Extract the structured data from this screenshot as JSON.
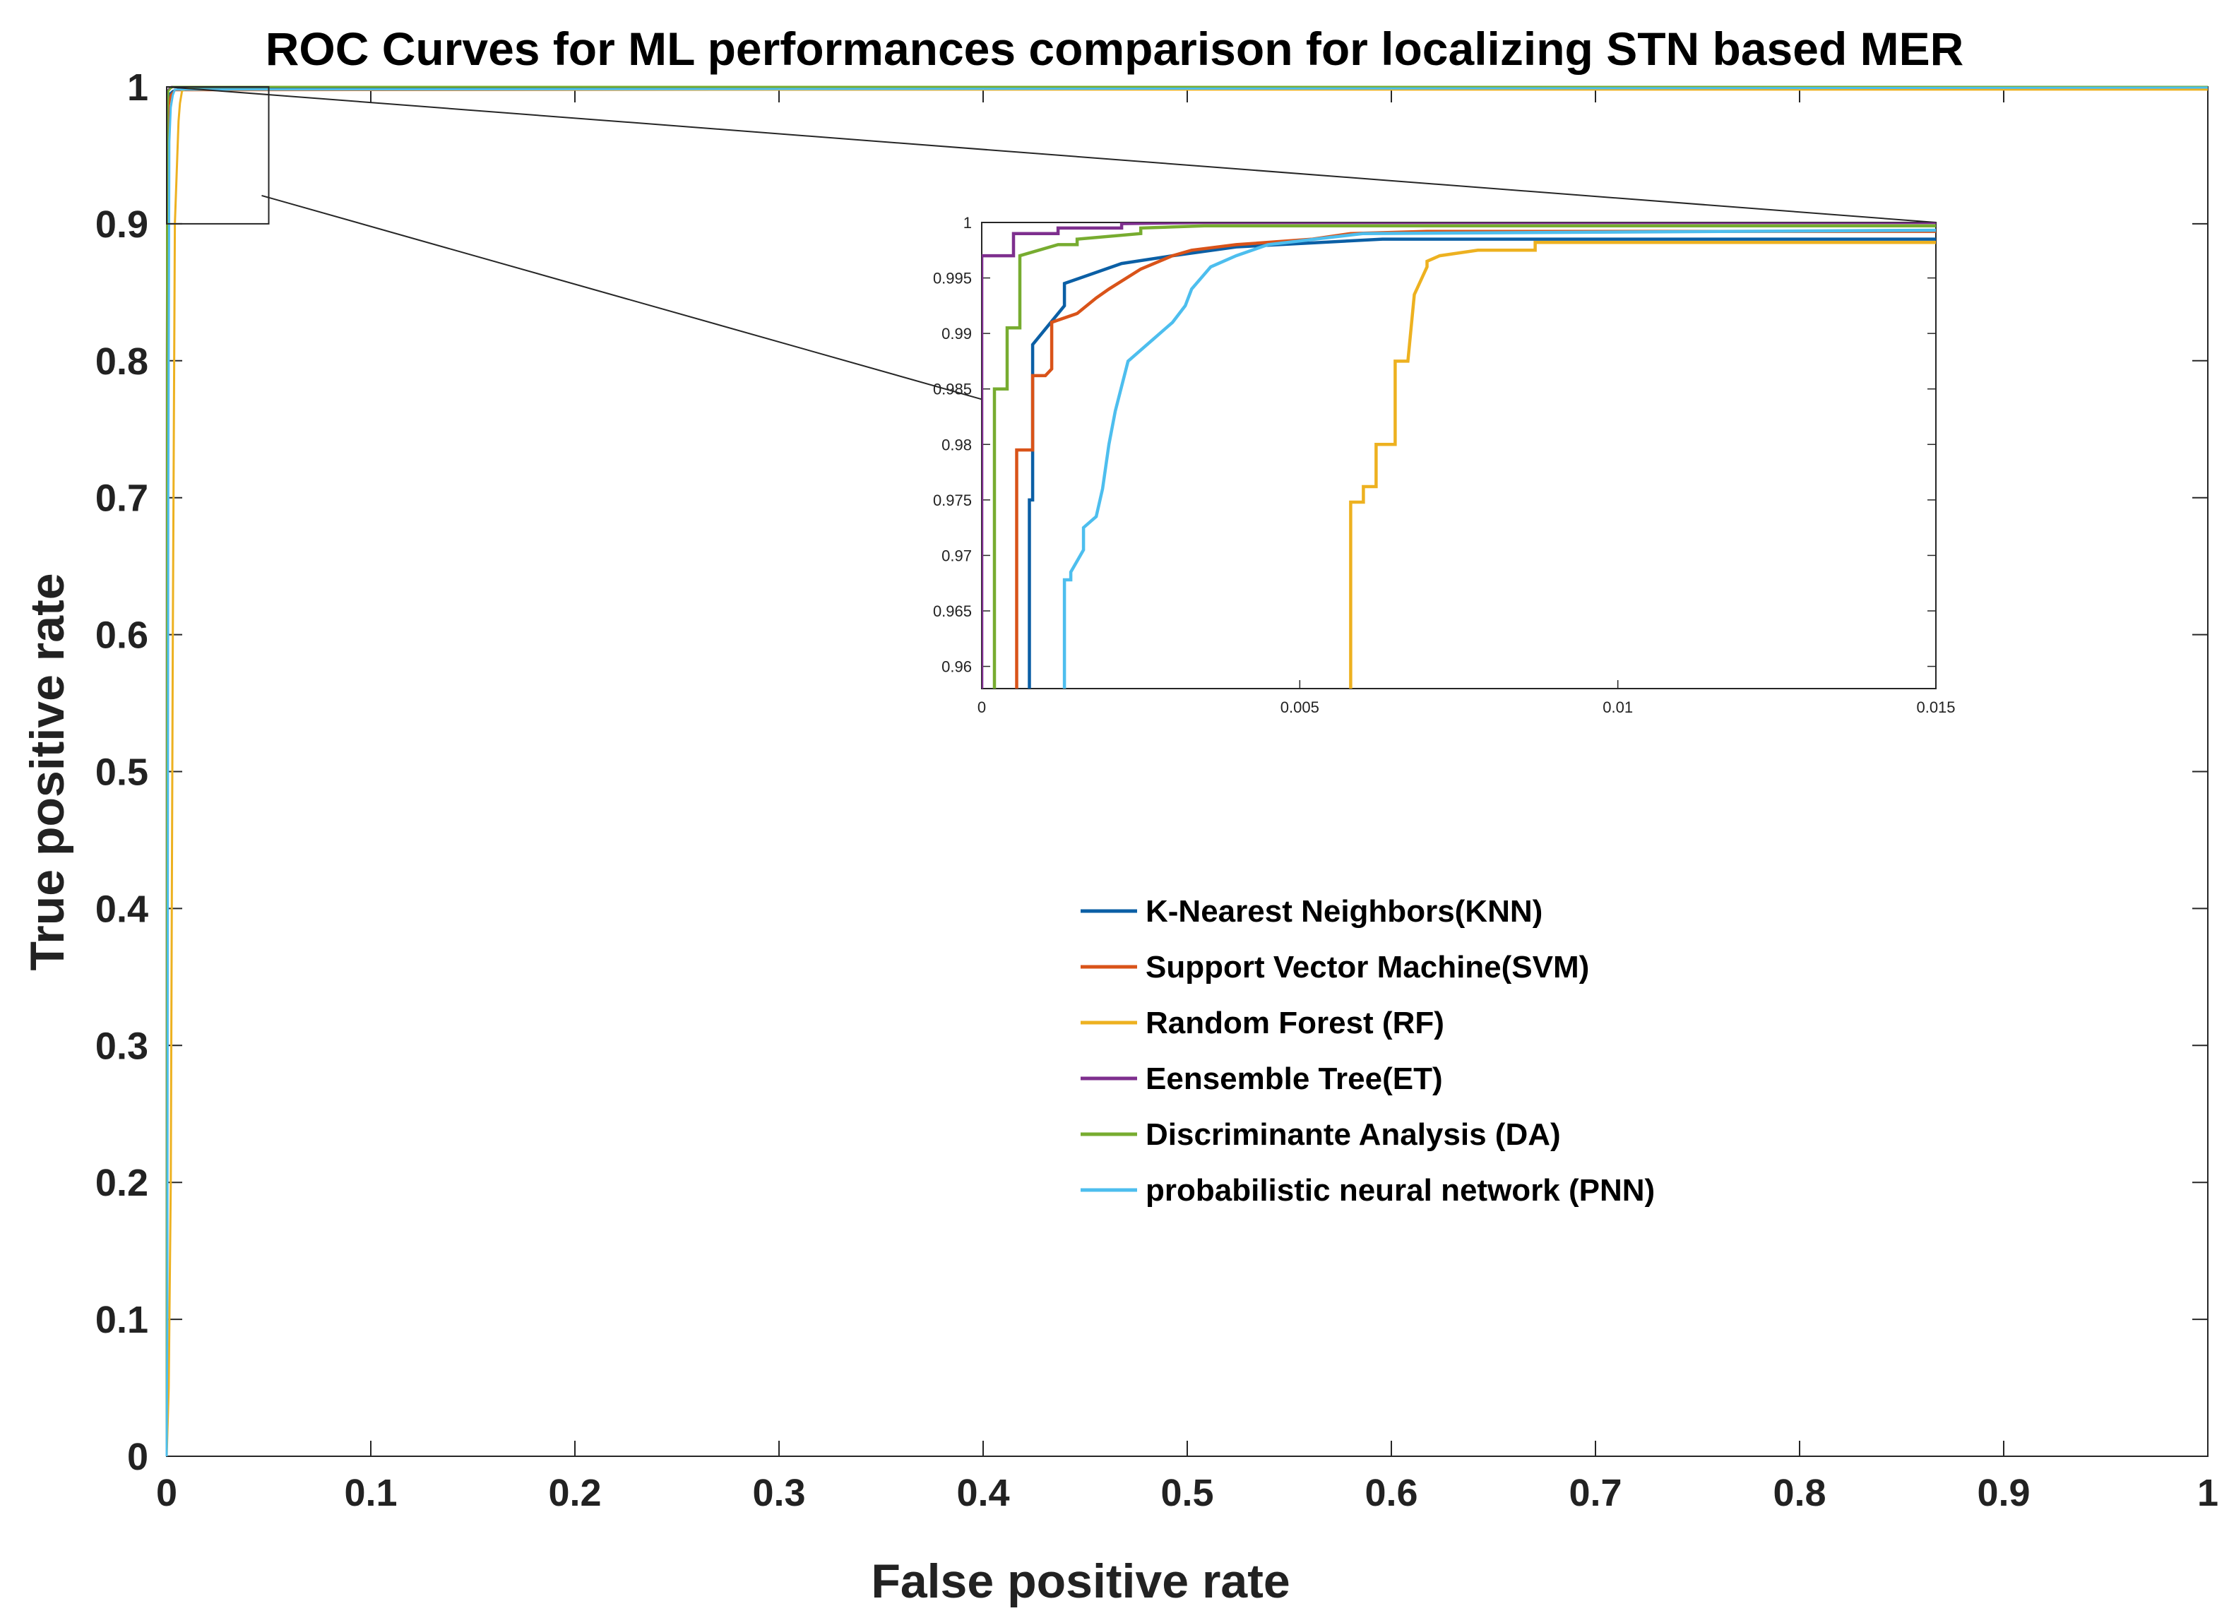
{
  "chart_data": {
    "type": "line",
    "title": "ROC Curves for ML performances comparison  for localizing STN based MER",
    "xlabel": "False positive rate",
    "ylabel": "True positive rate",
    "xlim": [
      0,
      1
    ],
    "ylim": [
      0,
      1
    ],
    "xticks": [
      0,
      0.1,
      0.2,
      0.3,
      0.4,
      0.5,
      0.6,
      0.7,
      0.8,
      0.9,
      1
    ],
    "yticks": [
      0,
      0.1,
      0.2,
      0.3,
      0.4,
      0.5,
      0.6,
      0.7,
      0.8,
      0.9,
      1
    ],
    "xtick_labels": [
      "0",
      "0.1",
      "0.2",
      "0.3",
      "0.4",
      "0.5",
      "0.6",
      "0.7",
      "0.8",
      "0.9",
      "1"
    ],
    "ytick_labels": [
      "0",
      "0.1",
      "0.2",
      "0.3",
      "0.4",
      "0.5",
      "0.6",
      "0.7",
      "0.8",
      "0.9",
      "1"
    ],
    "grid": false,
    "legend_position": "lower-center",
    "zoom_region": {
      "x": [
        0,
        0.05
      ],
      "y": [
        0.9,
        1
      ]
    },
    "series": [
      {
        "name": "K-Nearest Neighbors(KNN)",
        "color": "#0b5fa5",
        "x": [
          0,
          0.0002,
          0.0005,
          0.0008,
          0.0015,
          0.003,
          0.006,
          1
        ],
        "y": [
          0,
          0.3,
          0.7,
          0.99,
          0.995,
          0.997,
          0.9985,
          0.9985
        ]
      },
      {
        "name": "Support Vector Machine(SVM)",
        "color": "#d95319",
        "x": [
          0,
          0.0003,
          0.0007,
          0.001,
          0.002,
          0.004,
          1
        ],
        "y": [
          0,
          0.5,
          0.9,
          0.986,
          0.994,
          0.9975,
          0.999
        ]
      },
      {
        "name": "Random Forest (RF)",
        "color": "#edb120",
        "x": [
          0,
          0.001,
          0.002,
          0.003,
          0.004,
          0.0058,
          0.0065,
          0.0075,
          0.009,
          1
        ],
        "y": [
          0,
          0.05,
          0.2,
          0.6,
          0.9,
          0.975,
          0.988,
          0.997,
          0.998,
          0.998
        ]
      },
      {
        "name": "Eensemble Tree(ET)",
        "color": "#7e2f8e",
        "x": [
          0,
          0.0001,
          0.0003,
          0.0005,
          0.0015,
          0.0025,
          1
        ],
        "y": [
          0,
          0.8,
          0.96,
          0.997,
          0.999,
          1,
          1
        ]
      },
      {
        "name": "Discriminante Analysis (DA)",
        "color": "#77ac30",
        "x": [
          0,
          0.0001,
          0.0002,
          0.0005,
          0.0008,
          0.002,
          0.003,
          1
        ],
        "y": [
          0,
          0.5,
          0.9,
          0.985,
          0.997,
          0.999,
          1,
          1
        ]
      },
      {
        "name": "probabilistic neural network (PNN)",
        "color": "#4dbeee",
        "x": [
          0,
          0.0003,
          0.0008,
          0.0013,
          0.002,
          0.003,
          0.004,
          1
        ],
        "y": [
          0,
          0.1,
          0.7,
          0.96,
          0.985,
          0.994,
          0.998,
          0.9995
        ]
      }
    ],
    "inset": {
      "xlim": [
        0,
        0.015
      ],
      "ylim": [
        0.958,
        1
      ],
      "xticks": [
        0,
        0.005,
        0.01,
        0.015
      ],
      "xtick_labels": [
        "0",
        "0.005",
        "0.01",
        "0.015"
      ],
      "yticks": [
        0.96,
        0.965,
        0.97,
        0.975,
        0.98,
        0.985,
        0.99,
        0.995,
        1
      ],
      "ytick_labels": [
        "0.96",
        "0.965",
        "0.97",
        "0.975",
        "0.98",
        "0.985",
        "0.99",
        "0.995",
        "1"
      ],
      "series": [
        {
          "name": "K-Nearest Neighbors(KNN)",
          "color": "#0b5fa5",
          "x": [
            0.00075,
            0.00075,
            0.0008,
            0.0008,
            0.0013,
            0.0013,
            0.0022,
            0.003,
            0.004,
            0.0063,
            0.015
          ],
          "y": [
            0.958,
            0.975,
            0.975,
            0.989,
            0.9925,
            0.9945,
            0.9963,
            0.997,
            0.9978,
            0.9985,
            0.9985
          ]
        },
        {
          "name": "Support Vector Machine(SVM)",
          "color": "#d95319",
          "x": [
            0.00055,
            0.00055,
            0.0006,
            0.0006,
            0.0008,
            0.0008,
            0.001,
            0.0011,
            0.0011,
            0.0015,
            0.0018,
            0.002,
            0.0025,
            0.003,
            0.0033,
            0.004,
            0.0052,
            0.0058,
            0.007,
            0.015
          ],
          "y": [
            0.958,
            0.9795,
            0.9795,
            0.9795,
            0.9795,
            0.9862,
            0.9862,
            0.9868,
            0.991,
            0.9918,
            0.9932,
            0.994,
            0.9958,
            0.997,
            0.9975,
            0.998,
            0.9985,
            0.999,
            0.9992,
            0.9992
          ]
        },
        {
          "name": "Random Forest (RF)",
          "color": "#edb120",
          "x": [
            0.0058,
            0.0058,
            0.006,
            0.006,
            0.0062,
            0.0062,
            0.0065,
            0.0065,
            0.0067,
            0.0068,
            0.0068,
            0.007,
            0.007,
            0.0072,
            0.0078,
            0.0087,
            0.0087,
            0.015
          ],
          "y": [
            0.958,
            0.9748,
            0.9748,
            0.9762,
            0.9762,
            0.98,
            0.98,
            0.9875,
            0.9875,
            0.9935,
            0.9935,
            0.996,
            0.9965,
            0.997,
            0.9975,
            0.9975,
            0.9982,
            0.9982
          ]
        },
        {
          "name": "Eensemble Tree(ET)",
          "color": "#7e2f8e",
          "x": [
            0.0,
            0.0,
            0.0005,
            0.0005,
            0.0012,
            0.0012,
            0.0022,
            0.0022,
            0.0035,
            0.015
          ],
          "y": [
            0.958,
            0.997,
            0.997,
            0.999,
            0.999,
            0.9995,
            0.9995,
            0.9999,
            1.0,
            1.0
          ]
        },
        {
          "name": "Discriminante Analysis (DA)",
          "color": "#77ac30",
          "x": [
            0.0002,
            0.0002,
            0.0004,
            0.0004,
            0.0006,
            0.0006,
            0.0012,
            0.0015,
            0.0015,
            0.0025,
            0.0025,
            0.0035,
            0.015
          ],
          "y": [
            0.958,
            0.985,
            0.985,
            0.9905,
            0.9905,
            0.997,
            0.998,
            0.998,
            0.9985,
            0.999,
            0.9995,
            0.9997,
            0.9997
          ]
        },
        {
          "name": "probabilistic neural network (PNN)",
          "color": "#4dbeee",
          "x": [
            0.0013,
            0.0013,
            0.0014,
            0.0014,
            0.0016,
            0.0016,
            0.0018,
            0.0019,
            0.002,
            0.0021,
            0.0023,
            0.0025,
            0.0027,
            0.003,
            0.0032,
            0.0033,
            0.0036,
            0.004,
            0.0045,
            0.006,
            0.015
          ],
          "y": [
            0.958,
            0.9678,
            0.9678,
            0.9685,
            0.9705,
            0.9725,
            0.9735,
            0.976,
            0.98,
            0.983,
            0.9875,
            0.9885,
            0.9895,
            0.991,
            0.9925,
            0.994,
            0.996,
            0.997,
            0.998,
            0.999,
            0.9993
          ]
        }
      ]
    }
  }
}
